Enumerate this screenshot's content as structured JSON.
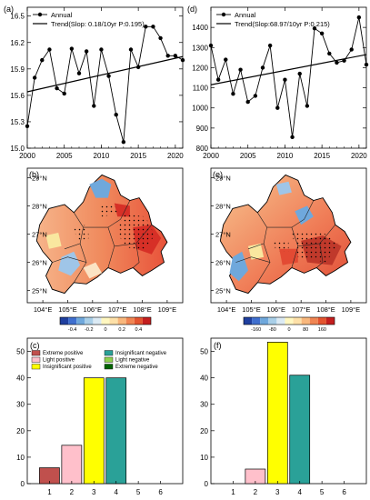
{
  "chart_data": [
    {
      "panel_label": "(a)",
      "type": "line",
      "legend": {
        "series": "Annual",
        "trend": "Trend(Slop: 0.18/10yr P:0.195)",
        "placement": "top-left"
      },
      "x": [
        2000,
        2001,
        2002,
        2003,
        2004,
        2005,
        2006,
        2007,
        2008,
        2009,
        2010,
        2011,
        2012,
        2013,
        2014,
        2015,
        2016,
        2017,
        2018,
        2019,
        2020,
        2021
      ],
      "values": [
        15.25,
        15.8,
        16.0,
        16.12,
        15.68,
        15.62,
        16.13,
        15.85,
        16.1,
        15.48,
        16.12,
        15.82,
        15.38,
        15.07,
        16.12,
        15.92,
        16.38,
        16.38,
        16.25,
        16.05,
        16.05,
        16.0
      ],
      "trend_line": [
        15.64,
        16.04
      ],
      "xlim": [
        2000,
        2021
      ],
      "ylim": [
        15.0,
        16.6
      ],
      "xticks": [
        "2000",
        "2005",
        "2010",
        "2015",
        "2020"
      ],
      "yticks": [
        "15.0",
        "15.3",
        "15.6",
        "15.9",
        "16.2",
        "16.5"
      ]
    },
    {
      "panel_label": "(d)",
      "type": "line",
      "legend": {
        "series": "Annual",
        "trend": "Trend(Slop:68.97/10yr P:0.215)",
        "placement": "top-left"
      },
      "x": [
        2000,
        2001,
        2002,
        2003,
        2004,
        2005,
        2006,
        2007,
        2008,
        2009,
        2010,
        2011,
        2012,
        2013,
        2014,
        2015,
        2016,
        2017,
        2018,
        2019,
        2020,
        2021
      ],
      "values": [
        1310,
        1140,
        1240,
        1070,
        1190,
        1030,
        1060,
        1200,
        1310,
        1000,
        1140,
        855,
        1170,
        1010,
        1395,
        1370,
        1270,
        1225,
        1235,
        1290,
        1450,
        1215
      ],
      "trend_line": [
        1115,
        1265
      ],
      "xlim": [
        2000,
        2021
      ],
      "ylim": [
        800,
        1500
      ],
      "xticks": [
        "2000",
        "2005",
        "2010",
        "2015",
        "2020"
      ],
      "yticks": [
        "800",
        "900",
        "1000",
        "1100",
        "1200",
        "1300",
        "1400"
      ]
    },
    {
      "panel_label": "(b)",
      "type": "heatmap",
      "lon_ticks": [
        "104°E",
        "105°E",
        "106°E",
        "107°E",
        "108°E",
        "109°E"
      ],
      "lat_ticks": [
        "25°N",
        "26°N",
        "27°N",
        "28°N",
        "29°N"
      ],
      "colorbar_ticks": [
        "-0.4",
        "-0.2",
        "0",
        "0.2",
        "0.4"
      ]
    },
    {
      "panel_label": "(e)",
      "type": "heatmap",
      "lon_ticks": [
        "104°E",
        "105°E",
        "106°E",
        "107°E",
        "108°E",
        "109°E"
      ],
      "lat_ticks": [
        "25°N",
        "26°N",
        "27°N",
        "28°N",
        "29°N"
      ],
      "colorbar_ticks": [
        "-160",
        "-80",
        "0",
        "80",
        "160"
      ]
    },
    {
      "panel_label": "(c)",
      "type": "bar",
      "categories": [
        "1",
        "2",
        "3",
        "4",
        "5",
        "6"
      ],
      "values": [
        6,
        14.5,
        40,
        40,
        0,
        0
      ],
      "colors": [
        "#c0504d",
        "#ffc0cb",
        "#ffff00",
        "#2aa198",
        "#8fd14f",
        "#006400"
      ],
      "ylim": [
        0,
        55
      ],
      "yticks": [
        "0",
        "10",
        "20",
        "30",
        "40",
        "50"
      ],
      "legend": [
        "Extreme positive",
        "Light positive",
        "Insignificant positive",
        "Insignificant negative",
        "Light negative",
        "Extreme negative"
      ]
    },
    {
      "panel_label": "(f)",
      "type": "bar",
      "categories": [
        "1",
        "2",
        "3",
        "4",
        "5",
        "6"
      ],
      "values": [
        0,
        5.5,
        53.5,
        41,
        0,
        0
      ],
      "colors": [
        "#c0504d",
        "#ffc0cb",
        "#ffff00",
        "#2aa198",
        "#8fd14f",
        "#006400"
      ],
      "ylim": [
        0,
        55
      ],
      "yticks": [
        "0",
        "10",
        "20",
        "30",
        "40",
        "50"
      ]
    }
  ]
}
